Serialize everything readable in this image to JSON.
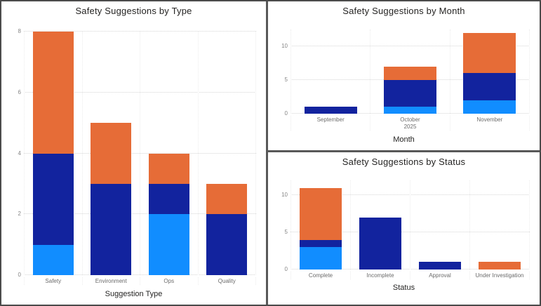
{
  "colors": {
    "series_light_blue": "#118DFF",
    "series_dark_blue": "#12239E",
    "series_orange": "#E66C37",
    "title_text": "#252423",
    "tick_text": "#868686",
    "category_text": "#6B6B6B",
    "gridline": "#D6D6D6",
    "panel_border": "#585858"
  },
  "chart_data": [
    {
      "type": "bar",
      "stacked": true,
      "title": "Safety Suggestions by Type",
      "xlabel": "Suggestion Type",
      "ylabel": "",
      "categories": [
        "Safety",
        "Environment",
        "Ops",
        "Quality"
      ],
      "category_sublabels": [
        "",
        "",
        "",
        ""
      ],
      "series": [
        {
          "name": "light-blue",
          "color": "#118DFF",
          "values": [
            1,
            0,
            2,
            0
          ]
        },
        {
          "name": "dark-blue",
          "color": "#12239E",
          "values": [
            3,
            3,
            1,
            2
          ]
        },
        {
          "name": "orange",
          "color": "#E66C37",
          "values": [
            4,
            2,
            1,
            1
          ]
        }
      ],
      "totals": [
        8,
        5,
        4,
        3
      ],
      "y_ticks": [
        0,
        2,
        4,
        6,
        8
      ],
      "ylim": [
        0,
        8
      ],
      "grid": "dotted-horizontal",
      "legend": "none"
    },
    {
      "type": "bar",
      "stacked": true,
      "title": "Safety Suggestions by Month",
      "xlabel": "Month",
      "ylabel": "",
      "categories": [
        "September",
        "October",
        "November"
      ],
      "category_sublabels": [
        "",
        "2025",
        ""
      ],
      "series": [
        {
          "name": "light-blue",
          "color": "#118DFF",
          "values": [
            0,
            1,
            2
          ]
        },
        {
          "name": "dark-blue",
          "color": "#12239E",
          "values": [
            1,
            4,
            4
          ]
        },
        {
          "name": "orange",
          "color": "#E66C37",
          "values": [
            0,
            2,
            6
          ]
        }
      ],
      "totals": [
        1,
        7,
        12
      ],
      "y_ticks": [
        0,
        5,
        10
      ],
      "ylim": [
        0,
        12.5
      ],
      "grid": "dotted-horizontal",
      "legend": "none"
    },
    {
      "type": "bar",
      "stacked": true,
      "title": "Safety Suggestions by Status",
      "xlabel": "Status",
      "ylabel": "",
      "categories": [
        "Complete",
        "Incomplete",
        "Approval",
        "Under Investigation"
      ],
      "category_sublabels": [
        "",
        "",
        "",
        ""
      ],
      "series": [
        {
          "name": "light-blue",
          "color": "#118DFF",
          "values": [
            3,
            0,
            0,
            0
          ]
        },
        {
          "name": "dark-blue",
          "color": "#12239E",
          "values": [
            1,
            7,
            1,
            0
          ]
        },
        {
          "name": "orange",
          "color": "#E66C37",
          "values": [
            7,
            0,
            0,
            1
          ]
        }
      ],
      "totals": [
        11,
        7,
        1,
        1
      ],
      "y_ticks": [
        0,
        5,
        10
      ],
      "ylim": [
        0,
        12
      ],
      "grid": "dotted-horizontal",
      "legend": "none"
    }
  ]
}
